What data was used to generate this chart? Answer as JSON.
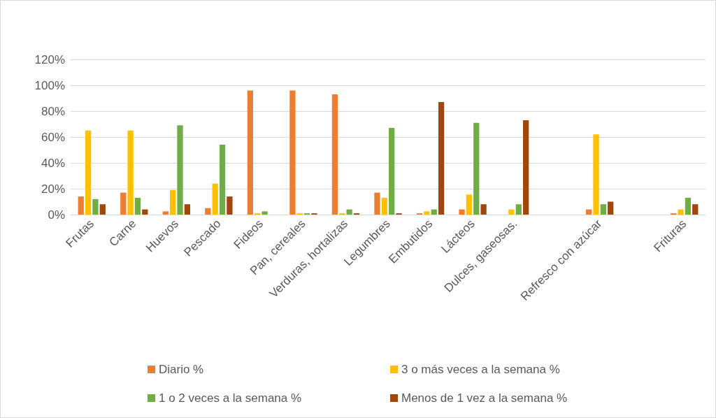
{
  "chart_data": {
    "type": "bar",
    "categories": [
      "Frutas",
      "Carne",
      "Huevos",
      "Pescado",
      "Fideos",
      "Pan, cereales",
      "Verduras, hortalizas",
      "Legumbres",
      "Embutidos",
      "Lácteos",
      "Dulces, gaseosas.",
      null,
      "Refresco con azúcar",
      null,
      "Frituras"
    ],
    "series": [
      {
        "name": "Diario %",
        "color": "#ed7d31",
        "values": [
          14,
          17,
          2.5,
          5,
          96,
          96,
          93,
          17,
          1,
          4,
          null,
          null,
          4,
          null,
          1
        ]
      },
      {
        "name": "3 o más veces a la semana %",
        "color": "#ffc000",
        "values": [
          65,
          65,
          19,
          24,
          1,
          1,
          1,
          13,
          2.5,
          15.5,
          4,
          null,
          62,
          null,
          4
        ]
      },
      {
        "name": "1 o 2 veces a la semana %",
        "color": "#70ad47",
        "values": [
          12,
          13,
          69,
          54,
          2.5,
          1,
          4,
          67,
          4,
          71,
          8,
          null,
          8,
          null,
          13
        ]
      },
      {
        "name": "Menos de 1 vez a la semana %",
        "color": "#9e480e",
        "values": [
          8,
          4,
          8,
          14,
          null,
          1,
          1,
          1,
          87,
          8,
          73,
          null,
          10,
          null,
          8
        ]
      }
    ],
    "ylim": [
      0,
      120
    ],
    "yticks": [
      {
        "value": 0,
        "label": "0%"
      },
      {
        "value": 20,
        "label": "20%"
      },
      {
        "value": 40,
        "label": "40%"
      },
      {
        "value": 60,
        "label": "60%"
      },
      {
        "value": 80,
        "label": "80%"
      },
      {
        "value": 100,
        "label": "100%"
      },
      {
        "value": 120,
        "label": "120%"
      }
    ],
    "grid": "y",
    "legend": "bottom"
  }
}
